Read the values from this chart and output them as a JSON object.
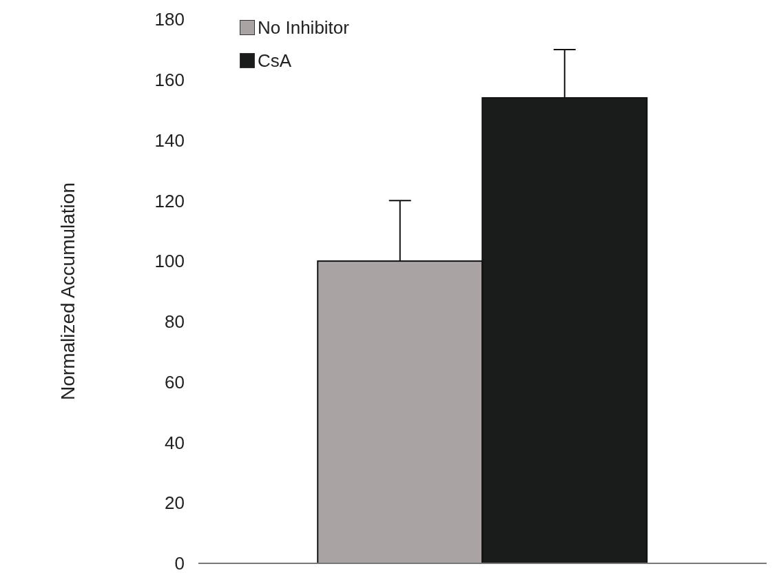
{
  "chart_data": {
    "type": "bar",
    "ylabel": "Normalized Accumulation",
    "categories": [
      null
    ],
    "series": [
      {
        "name": "No Inhibitor",
        "color": "#a9a4a3",
        "values": [
          100
        ],
        "errors": [
          [
            100,
            120
          ]
        ]
      },
      {
        "name": "CsA",
        "color": "#1a1c1b",
        "values": [
          154
        ],
        "errors": [
          [
            154,
            170
          ]
        ]
      }
    ],
    "ylim": [
      0,
      180
    ],
    "yticks": [
      0,
      20,
      40,
      60,
      80,
      100,
      120,
      140,
      160,
      180
    ],
    "grid": false,
    "legend": "top left"
  }
}
